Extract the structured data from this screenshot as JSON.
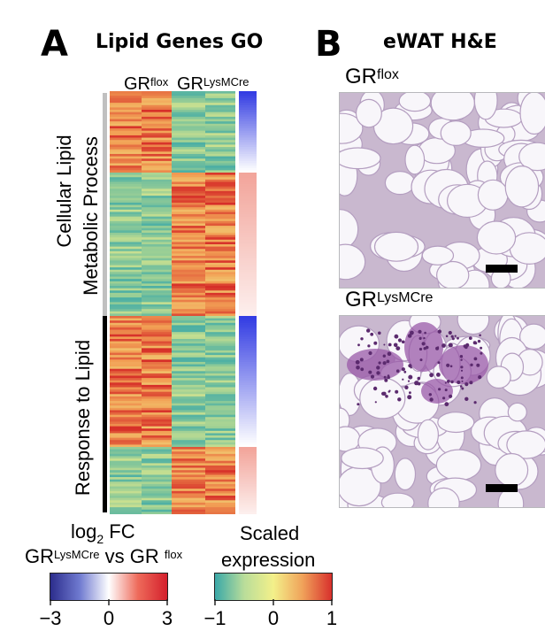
{
  "panel_a": {
    "letter": "A",
    "title": "Lipid Genes GO",
    "col_label_flox": "GR",
    "col_label_flox_sup": "flox",
    "col_label_lys": "GR",
    "col_label_lys_sup": "LysMCre",
    "row_group_1": "Cellular Lipid",
    "row_group_1b": "Metabolic Process",
    "row_group_2": "Response to Lipid"
  },
  "panel_b": {
    "letter": "B",
    "title": "eWAT H&E",
    "img1_label": "GR",
    "img1_label_sup": "flox",
    "img2_label": "GR",
    "img2_label_sup": "LysMCre"
  },
  "legend_fc": {
    "title_part1": "log",
    "title_sub": "2",
    "title_part2": " FC",
    "subtitle_a": "GR",
    "subtitle_a_sup": "LysMCre",
    "subtitle_mid": " vs GR ",
    "subtitle_b_sup": "flox",
    "ticks": [
      "−3",
      "0",
      "3"
    ],
    "colors": [
      "#2c2d8c",
      "#6f7ad0",
      "#ffffff",
      "#ee6a5a",
      "#d4202c"
    ]
  },
  "legend_scaled": {
    "title_1": "Scaled",
    "title_2": "expression",
    "ticks": [
      "−1",
      "0",
      "1"
    ],
    "colors": [
      "#3aa8a8",
      "#b9dd9a",
      "#f3f08a",
      "#f0a25a",
      "#d8302c"
    ]
  }
}
